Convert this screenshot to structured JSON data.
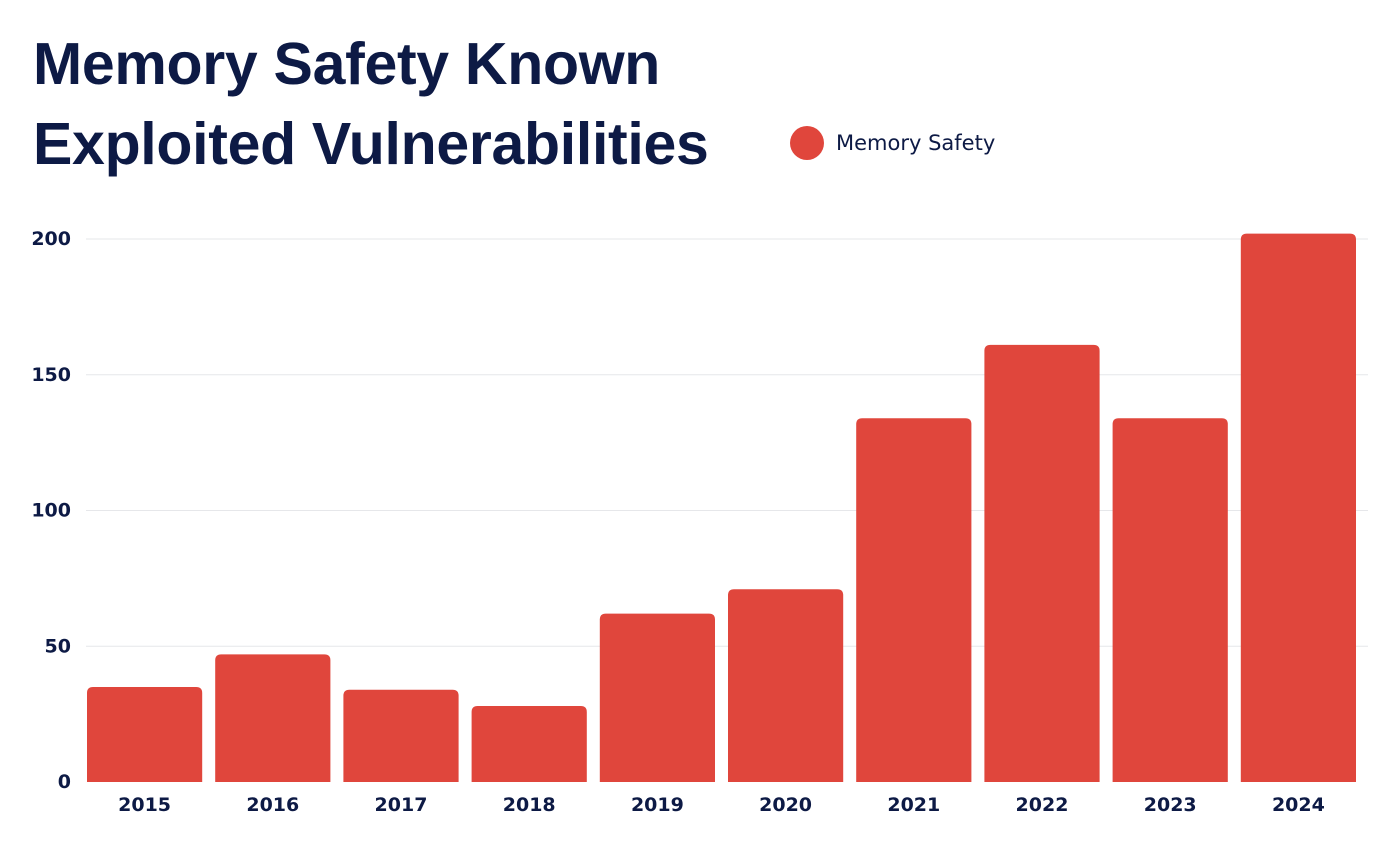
{
  "chart_data": {
    "type": "bar",
    "title": [
      "Memory Safety Known",
      "Exploited Vulnerabilities"
    ],
    "categories": [
      "2015",
      "2016",
      "2017",
      "2018",
      "2019",
      "2020",
      "2021",
      "2022",
      "2023",
      "2024"
    ],
    "series": [
      {
        "name": "Memory Safety",
        "color": "#e0463c",
        "values": [
          35,
          47,
          34,
          28,
          62,
          71,
          134,
          161,
          134,
          202
        ]
      }
    ],
    "yticks": [
      "0",
      "50",
      "100",
      "150",
      "200"
    ],
    "ylim": [
      0,
      200
    ],
    "grid": true,
    "legend_position": "top-right of title"
  }
}
